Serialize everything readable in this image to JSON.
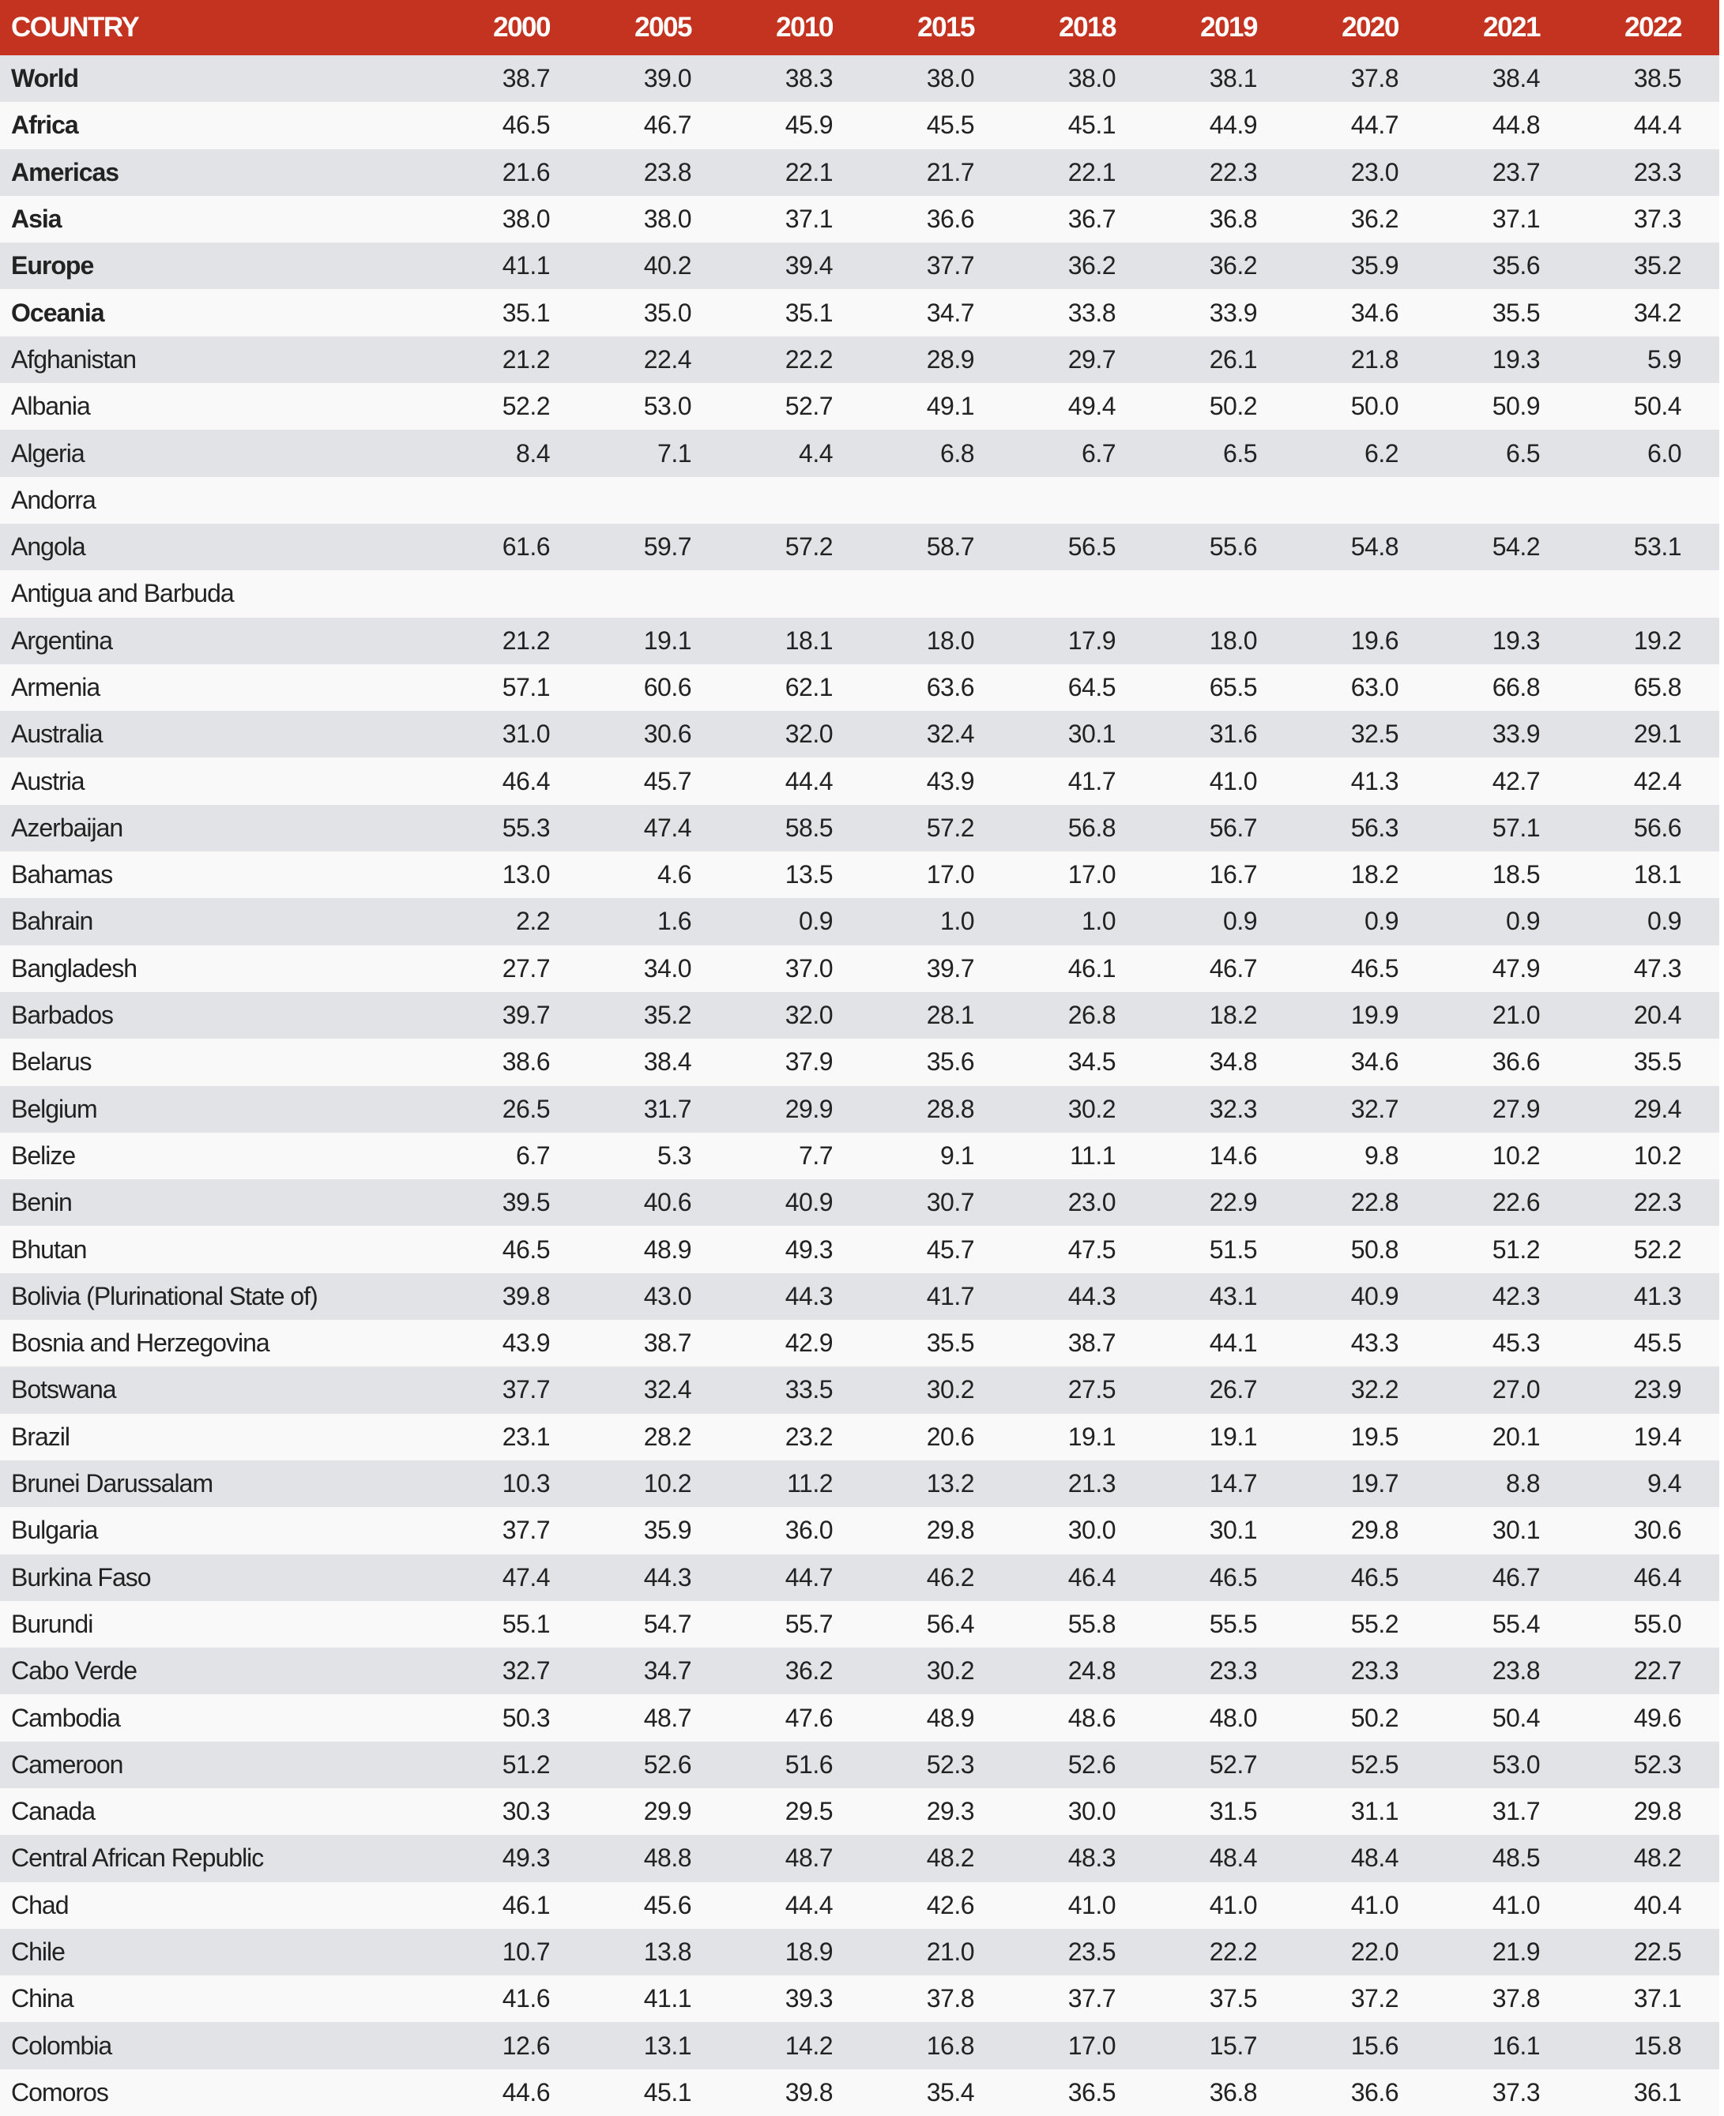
{
  "table": {
    "header": [
      "COUNTRY",
      "2000",
      "2005",
      "2010",
      "2015",
      "2018",
      "2019",
      "2020",
      "2021",
      "2022"
    ],
    "colors": {
      "header_bg": "#c4331f",
      "row_odd": "#e2e3e6",
      "row_even": "#f9f9f9"
    },
    "rows": [
      {
        "name": "World",
        "bold": true,
        "values": [
          "38.7",
          "39.0",
          "38.3",
          "38.0",
          "38.0",
          "38.1",
          "37.8",
          "38.4",
          "38.5"
        ]
      },
      {
        "name": "Africa",
        "bold": true,
        "values": [
          "46.5",
          "46.7",
          "45.9",
          "45.5",
          "45.1",
          "44.9",
          "44.7",
          "44.8",
          "44.4"
        ]
      },
      {
        "name": "Americas",
        "bold": true,
        "values": [
          "21.6",
          "23.8",
          "22.1",
          "21.7",
          "22.1",
          "22.3",
          "23.0",
          "23.7",
          "23.3"
        ]
      },
      {
        "name": "Asia",
        "bold": true,
        "values": [
          "38.0",
          "38.0",
          "37.1",
          "36.6",
          "36.7",
          "36.8",
          "36.2",
          "37.1",
          "37.3"
        ]
      },
      {
        "name": "Europe",
        "bold": true,
        "values": [
          "41.1",
          "40.2",
          "39.4",
          "37.7",
          "36.2",
          "36.2",
          "35.9",
          "35.6",
          "35.2"
        ]
      },
      {
        "name": "Oceania",
        "bold": true,
        "values": [
          "35.1",
          "35.0",
          "35.1",
          "34.7",
          "33.8",
          "33.9",
          "34.6",
          "35.5",
          "34.2"
        ]
      },
      {
        "name": "Afghanistan",
        "values": [
          "21.2",
          "22.4",
          "22.2",
          "28.9",
          "29.7",
          "26.1",
          "21.8",
          "19.3",
          "5.9"
        ]
      },
      {
        "name": "Albania",
        "values": [
          "52.2",
          "53.0",
          "52.7",
          "49.1",
          "49.4",
          "50.2",
          "50.0",
          "50.9",
          "50.4"
        ]
      },
      {
        "name": "Algeria",
        "values": [
          "8.4",
          "7.1",
          "4.4",
          "6.8",
          "6.7",
          "6.5",
          "6.2",
          "6.5",
          "6.0"
        ]
      },
      {
        "name": "Andorra",
        "values": [
          "",
          "",
          "",
          "",
          "",
          "",
          "",
          "",
          ""
        ]
      },
      {
        "name": "Angola",
        "values": [
          "61.6",
          "59.7",
          "57.2",
          "58.7",
          "56.5",
          "55.6",
          "54.8",
          "54.2",
          "53.1"
        ]
      },
      {
        "name": "Antigua and Barbuda",
        "values": [
          "",
          "",
          "",
          "",
          "",
          "",
          "",
          "",
          ""
        ]
      },
      {
        "name": "Argentina",
        "values": [
          "21.2",
          "19.1",
          "18.1",
          "18.0",
          "17.9",
          "18.0",
          "19.6",
          "19.3",
          "19.2"
        ]
      },
      {
        "name": "Armenia",
        "values": [
          "57.1",
          "60.6",
          "62.1",
          "63.6",
          "64.5",
          "65.5",
          "63.0",
          "66.8",
          "65.8"
        ]
      },
      {
        "name": "Australia",
        "values": [
          "31.0",
          "30.6",
          "32.0",
          "32.4",
          "30.1",
          "31.6",
          "32.5",
          "33.9",
          "29.1"
        ]
      },
      {
        "name": "Austria",
        "values": [
          "46.4",
          "45.7",
          "44.4",
          "43.9",
          "41.7",
          "41.0",
          "41.3",
          "42.7",
          "42.4"
        ]
      },
      {
        "name": "Azerbaijan",
        "values": [
          "55.3",
          "47.4",
          "58.5",
          "57.2",
          "56.8",
          "56.7",
          "56.3",
          "57.1",
          "56.6"
        ]
      },
      {
        "name": "Bahamas",
        "values": [
          "13.0",
          "4.6",
          "13.5",
          "17.0",
          "17.0",
          "16.7",
          "18.2",
          "18.5",
          "18.1"
        ]
      },
      {
        "name": "Bahrain",
        "values": [
          "2.2",
          "1.6",
          "0.9",
          "1.0",
          "1.0",
          "0.9",
          "0.9",
          "0.9",
          "0.9"
        ]
      },
      {
        "name": "Bangladesh",
        "values": [
          "27.7",
          "34.0",
          "37.0",
          "39.7",
          "46.1",
          "46.7",
          "46.5",
          "47.9",
          "47.3"
        ]
      },
      {
        "name": "Barbados",
        "values": [
          "39.7",
          "35.2",
          "32.0",
          "28.1",
          "26.8",
          "18.2",
          "19.9",
          "21.0",
          "20.4"
        ]
      },
      {
        "name": "Belarus",
        "values": [
          "38.6",
          "38.4",
          "37.9",
          "35.6",
          "34.5",
          "34.8",
          "34.6",
          "36.6",
          "35.5"
        ]
      },
      {
        "name": "Belgium",
        "values": [
          "26.5",
          "31.7",
          "29.9",
          "28.8",
          "30.2",
          "32.3",
          "32.7",
          "27.9",
          "29.4"
        ]
      },
      {
        "name": "Belize",
        "values": [
          "6.7",
          "5.3",
          "7.7",
          "9.1",
          "11.1",
          "14.6",
          "9.8",
          "10.2",
          "10.2"
        ]
      },
      {
        "name": "Benin",
        "values": [
          "39.5",
          "40.6",
          "40.9",
          "30.7",
          "23.0",
          "22.9",
          "22.8",
          "22.6",
          "22.3"
        ]
      },
      {
        "name": "Bhutan",
        "values": [
          "46.5",
          "48.9",
          "49.3",
          "45.7",
          "47.5",
          "51.5",
          "50.8",
          "51.2",
          "52.2"
        ]
      },
      {
        "name": "Bolivia (Plurinational State of)",
        "values": [
          "39.8",
          "43.0",
          "44.3",
          "41.7",
          "44.3",
          "43.1",
          "40.9",
          "42.3",
          "41.3"
        ]
      },
      {
        "name": "Bosnia and Herzegovina",
        "values": [
          "43.9",
          "38.7",
          "42.9",
          "35.5",
          "38.7",
          "44.1",
          "43.3",
          "45.3",
          "45.5"
        ]
      },
      {
        "name": "Botswana",
        "values": [
          "37.7",
          "32.4",
          "33.5",
          "30.2",
          "27.5",
          "26.7",
          "32.2",
          "27.0",
          "23.9"
        ]
      },
      {
        "name": "Brazil",
        "values": [
          "23.1",
          "28.2",
          "23.2",
          "20.6",
          "19.1",
          "19.1",
          "19.5",
          "20.1",
          "19.4"
        ]
      },
      {
        "name": "Brunei Darussalam",
        "values": [
          "10.3",
          "10.2",
          "11.2",
          "13.2",
          "21.3",
          "14.7",
          "19.7",
          "8.8",
          "9.4"
        ]
      },
      {
        "name": "Bulgaria",
        "values": [
          "37.7",
          "35.9",
          "36.0",
          "29.8",
          "30.0",
          "30.1",
          "29.8",
          "30.1",
          "30.6"
        ]
      },
      {
        "name": "Burkina Faso",
        "values": [
          "47.4",
          "44.3",
          "44.7",
          "46.2",
          "46.4",
          "46.5",
          "46.5",
          "46.7",
          "46.4"
        ]
      },
      {
        "name": "Burundi",
        "values": [
          "55.1",
          "54.7",
          "55.7",
          "56.4",
          "55.8",
          "55.5",
          "55.2",
          "55.4",
          "55.0"
        ]
      },
      {
        "name": "Cabo Verde",
        "values": [
          "32.7",
          "34.7",
          "36.2",
          "30.2",
          "24.8",
          "23.3",
          "23.3",
          "23.8",
          "22.7"
        ]
      },
      {
        "name": "Cambodia",
        "values": [
          "50.3",
          "48.7",
          "47.6",
          "48.9",
          "48.6",
          "48.0",
          "50.2",
          "50.4",
          "49.6"
        ]
      },
      {
        "name": "Cameroon",
        "values": [
          "51.2",
          "52.6",
          "51.6",
          "52.3",
          "52.6",
          "52.7",
          "52.5",
          "53.0",
          "52.3"
        ]
      },
      {
        "name": "Canada",
        "values": [
          "30.3",
          "29.9",
          "29.5",
          "29.3",
          "30.0",
          "31.5",
          "31.1",
          "31.7",
          "29.8"
        ]
      },
      {
        "name": "Central African Republic",
        "values": [
          "49.3",
          "48.8",
          "48.7",
          "48.2",
          "48.3",
          "48.4",
          "48.4",
          "48.5",
          "48.2"
        ]
      },
      {
        "name": "Chad",
        "values": [
          "46.1",
          "45.6",
          "44.4",
          "42.6",
          "41.0",
          "41.0",
          "41.0",
          "41.0",
          "40.4"
        ]
      },
      {
        "name": "Chile",
        "values": [
          "10.7",
          "13.8",
          "18.9",
          "21.0",
          "23.5",
          "22.2",
          "22.0",
          "21.9",
          "22.5"
        ]
      },
      {
        "name": "China",
        "values": [
          "41.6",
          "41.1",
          "39.3",
          "37.8",
          "37.7",
          "37.5",
          "37.2",
          "37.8",
          "37.1"
        ]
      },
      {
        "name": "Colombia",
        "values": [
          "12.6",
          "13.1",
          "14.2",
          "16.8",
          "17.0",
          "15.7",
          "15.6",
          "16.1",
          "15.8"
        ]
      },
      {
        "name": "Comoros",
        "values": [
          "44.6",
          "45.1",
          "39.8",
          "35.4",
          "36.5",
          "36.8",
          "36.6",
          "37.3",
          "36.1"
        ]
      }
    ]
  }
}
